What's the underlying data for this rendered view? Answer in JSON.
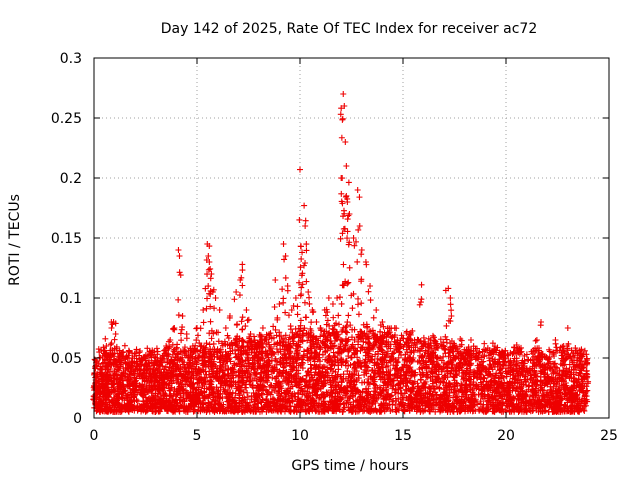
{
  "chart_data": {
    "type": "scatter",
    "title": "Day 142 of 2025, Rate Of TEC Index for receiver ac72",
    "xlabel": "GPS time / hours",
    "ylabel": "ROTI / TECUs",
    "xlim": [
      0,
      25
    ],
    "ylim": [
      0,
      0.3
    ],
    "x_ticks": [
      "0",
      "5",
      "10",
      "15",
      "20",
      "25"
    ],
    "y_ticks": [
      "0",
      "0.05",
      "0.1",
      "0.15",
      "0.2",
      "0.25",
      "0.3"
    ],
    "grid": true,
    "marker": "plus",
    "color": "#ee0000",
    "series": [
      {
        "points": [
          [
            0.0,
            0.015
          ],
          [
            0.1,
            0.03
          ],
          [
            0.2,
            0.025
          ],
          [
            0.3,
            0.04
          ],
          [
            0.45,
            0.035
          ],
          [
            0.55,
            0.066
          ],
          [
            0.6,
            0.06
          ],
          [
            0.75,
            0.045
          ],
          [
            0.85,
            0.075
          ],
          [
            0.95,
            0.08
          ],
          [
            1.05,
            0.07
          ],
          [
            1.2,
            0.05
          ],
          [
            1.4,
            0.035
          ],
          [
            1.6,
            0.045
          ],
          [
            1.8,
            0.03
          ],
          [
            2.0,
            0.04
          ],
          [
            2.3,
            0.05
          ],
          [
            2.5,
            0.045
          ],
          [
            2.7,
            0.055
          ],
          [
            2.9,
            0.04
          ],
          [
            3.1,
            0.045
          ],
          [
            3.3,
            0.05
          ],
          [
            3.5,
            0.06
          ],
          [
            3.7,
            0.065
          ],
          [
            3.9,
            0.075
          ],
          [
            4.1,
            0.14
          ],
          [
            4.15,
            0.135
          ],
          [
            4.3,
            0.085
          ],
          [
            4.5,
            0.07
          ],
          [
            4.8,
            0.06
          ],
          [
            5.0,
            0.075
          ],
          [
            5.3,
            0.09
          ],
          [
            5.5,
            0.145
          ],
          [
            5.55,
            0.135
          ],
          [
            5.6,
            0.13
          ],
          [
            5.7,
            0.12
          ],
          [
            5.9,
            0.1
          ],
          [
            6.1,
            0.09
          ],
          [
            6.4,
            0.075
          ],
          [
            6.6,
            0.085
          ],
          [
            6.9,
            0.105
          ],
          [
            7.1,
            0.115
          ],
          [
            7.2,
            0.128
          ],
          [
            7.4,
            0.09
          ],
          [
            7.6,
            0.07
          ],
          [
            7.8,
            0.065
          ],
          [
            8.0,
            0.06
          ],
          [
            8.2,
            0.075
          ],
          [
            8.5,
            0.07
          ],
          [
            8.8,
            0.115
          ],
          [
            9.0,
            0.095
          ],
          [
            9.2,
            0.145
          ],
          [
            9.3,
            0.135
          ],
          [
            9.4,
            0.11
          ],
          [
            9.6,
            0.09
          ],
          [
            9.8,
            0.1
          ],
          [
            10.0,
            0.207
          ],
          [
            10.05,
            0.143
          ],
          [
            10.1,
            0.138
          ],
          [
            10.2,
            0.177
          ],
          [
            10.25,
            0.16
          ],
          [
            10.4,
            0.105
          ],
          [
            10.6,
            0.09
          ],
          [
            10.8,
            0.08
          ],
          [
            11.0,
            0.075
          ],
          [
            11.2,
            0.09
          ],
          [
            11.4,
            0.1
          ],
          [
            11.6,
            0.095
          ],
          [
            11.8,
            0.1
          ],
          [
            12.0,
            0.2
          ],
          [
            12.1,
            0.27
          ],
          [
            12.15,
            0.26
          ],
          [
            12.2,
            0.23
          ],
          [
            12.25,
            0.21
          ],
          [
            12.3,
            0.18
          ],
          [
            12.4,
            0.17
          ],
          [
            12.6,
            0.15
          ],
          [
            12.8,
            0.19
          ],
          [
            12.9,
            0.16
          ],
          [
            13.0,
            0.14
          ],
          [
            13.2,
            0.13
          ],
          [
            13.4,
            0.11
          ],
          [
            13.7,
            0.09
          ],
          [
            14.0,
            0.08
          ],
          [
            14.3,
            0.06
          ],
          [
            14.6,
            0.075
          ],
          [
            14.9,
            0.06
          ],
          [
            15.2,
            0.055
          ],
          [
            15.5,
            0.05
          ],
          [
            15.9,
            0.111
          ],
          [
            16.2,
            0.06
          ],
          [
            16.5,
            0.045
          ],
          [
            16.8,
            0.05
          ],
          [
            17.2,
            0.108
          ],
          [
            17.3,
            0.1
          ],
          [
            17.35,
            0.085
          ],
          [
            17.5,
            0.06
          ],
          [
            17.8,
            0.05
          ],
          [
            18.0,
            0.045
          ],
          [
            18.3,
            0.065
          ],
          [
            18.6,
            0.05
          ],
          [
            19.0,
            0.04
          ],
          [
            19.4,
            0.045
          ],
          [
            19.8,
            0.035
          ],
          [
            20.2,
            0.04
          ],
          [
            20.6,
            0.035
          ],
          [
            21.0,
            0.04
          ],
          [
            21.5,
            0.065
          ],
          [
            21.7,
            0.08
          ],
          [
            22.0,
            0.05
          ],
          [
            22.4,
            0.065
          ],
          [
            22.8,
            0.06
          ],
          [
            23.0,
            0.075
          ],
          [
            23.3,
            0.05
          ],
          [
            23.6,
            0.045
          ],
          [
            23.9,
            0.035
          ]
        ]
      }
    ],
    "baseline_band": {
      "x_range": [
        0.0,
        23.95
      ],
      "y_range": [
        0.005,
        0.04
      ]
    }
  }
}
